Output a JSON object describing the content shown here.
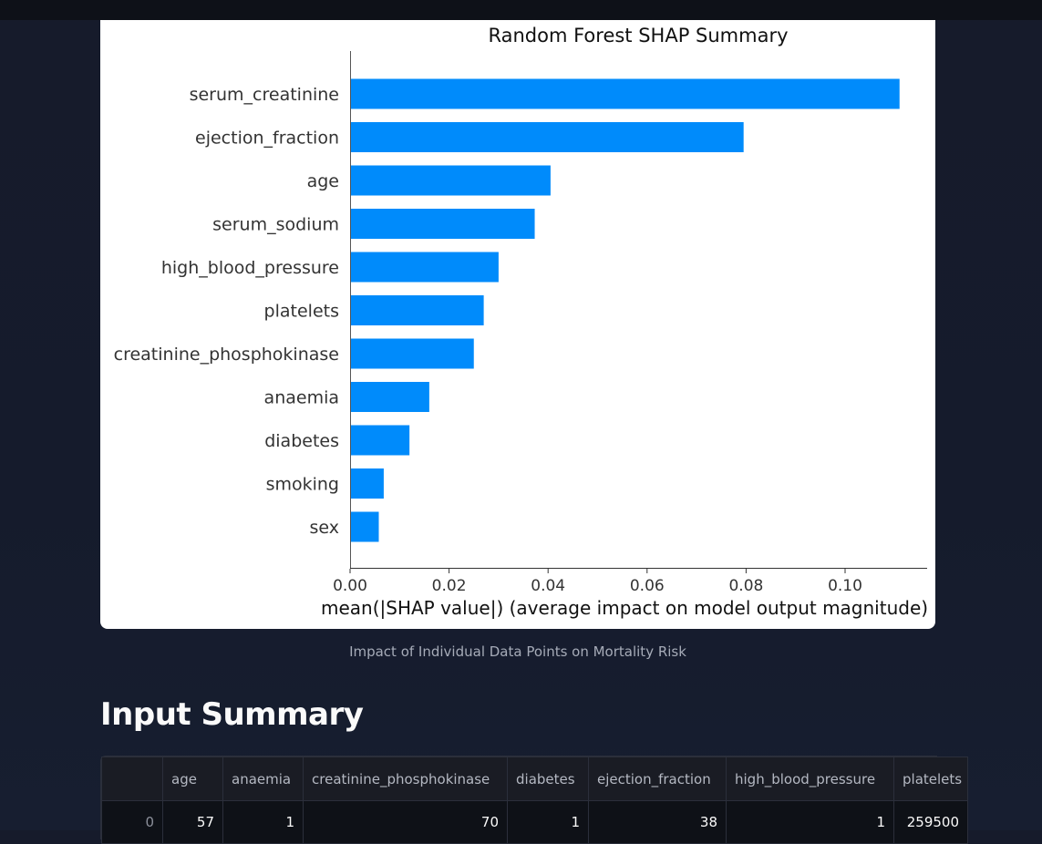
{
  "chart_data": {
    "type": "bar",
    "orientation": "horizontal",
    "title": "Random Forest SHAP Summary",
    "xlabel": "mean(|SHAP value|) (average impact on model output magnitude)",
    "ylabel": "",
    "xlim": [
      0,
      0.1165
    ],
    "xticks": [
      0.0,
      0.02,
      0.04,
      0.06,
      0.08,
      0.1
    ],
    "xtick_labels": [
      "0.00",
      "0.02",
      "0.04",
      "0.06",
      "0.08",
      "0.10"
    ],
    "categories": [
      "serum_creatinine",
      "ejection_fraction",
      "age",
      "serum_sodium",
      "high_blood_pressure",
      "platelets",
      "creatinine_phosphokinase",
      "anaemia",
      "diabetes",
      "smoking",
      "sex"
    ],
    "values": [
      0.111,
      0.0795,
      0.0405,
      0.0373,
      0.03,
      0.027,
      0.025,
      0.016,
      0.012,
      0.0068,
      0.0058
    ],
    "bar_color": "#008bfb",
    "grid": false,
    "legend": "none"
  },
  "caption": "Impact of Individual Data Points on Mortality Risk",
  "input_summary": {
    "title": "Input Summary",
    "columns": [
      "",
      "age",
      "anaemia",
      "creatinine_phosphokinase",
      "diabetes",
      "ejection_fraction",
      "high_blood_pressure",
      "platelets"
    ],
    "rows": [
      [
        "0",
        "57",
        "1",
        "70",
        "1",
        "38",
        "1",
        "259500"
      ]
    ]
  }
}
